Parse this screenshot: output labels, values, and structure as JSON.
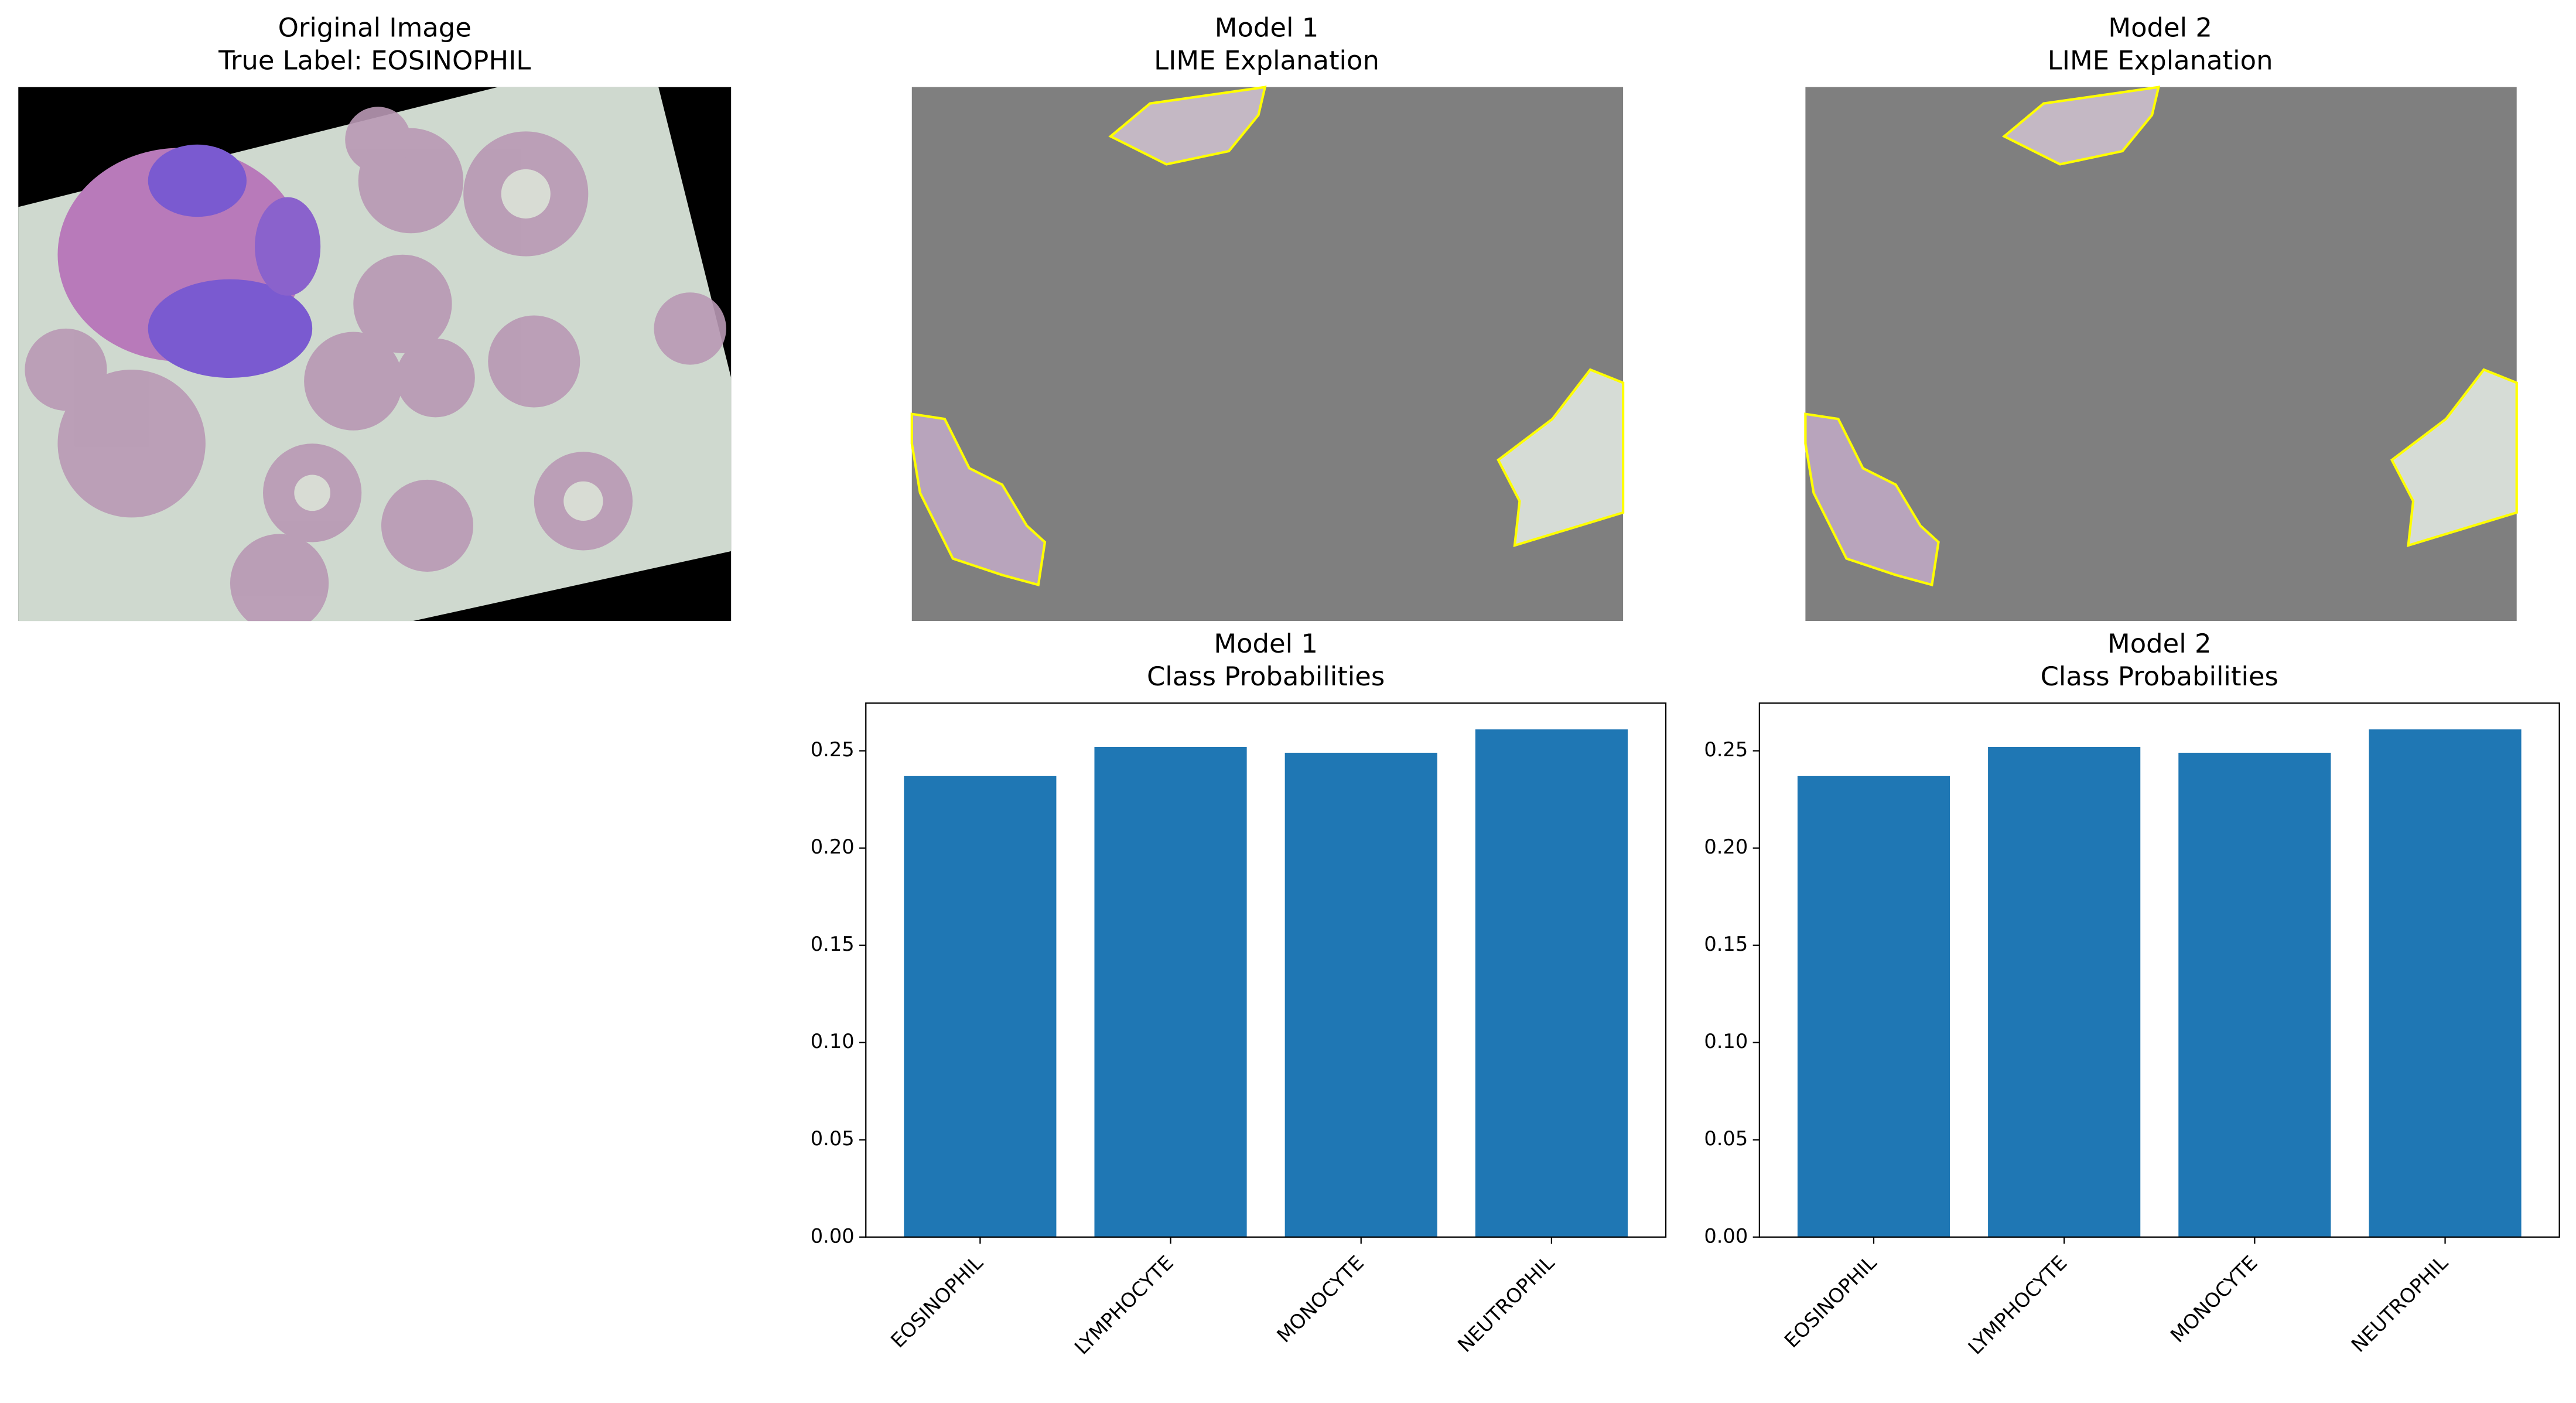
{
  "images": [
    {
      "title": [
        "Original Image",
        "True Label: EOSINOPHIL"
      ]
    },
    {
      "title": [
        "Model 1",
        "LIME Explanation"
      ]
    },
    {
      "title": [
        "Model 2",
        "LIME Explanation"
      ]
    }
  ],
  "chart_data": [
    {
      "type": "bar",
      "title": [
        "Model 1",
        "Class Probabilities"
      ],
      "categories": [
        "EOSINOPHIL",
        "LYMPHOCYTE",
        "MONOCYTE",
        "NEUTROPHIL"
      ],
      "values": [
        0.237,
        0.252,
        0.249,
        0.261
      ],
      "color": "#1f77b4",
      "ylim": [
        0,
        0.2745
      ],
      "yticks": [
        {
          "value": 0,
          "label": "0.00"
        },
        {
          "value": 0.05,
          "label": "0.05"
        },
        {
          "value": 0.1,
          "label": "0.10"
        },
        {
          "value": 0.15,
          "label": "0.15"
        },
        {
          "value": 0.2,
          "label": "0.20"
        },
        {
          "value": 0.25,
          "label": "0.25"
        }
      ]
    },
    {
      "type": "bar",
      "title": [
        "Model 2",
        "Class Probabilities"
      ],
      "categories": [
        "EOSINOPHIL",
        "LYMPHOCYTE",
        "MONOCYTE",
        "NEUTROPHIL"
      ],
      "values": [
        0.237,
        0.252,
        0.249,
        0.261
      ],
      "color": "#1f77b4",
      "ylim": [
        0,
        0.2745
      ],
      "yticks": [
        {
          "value": 0,
          "label": "0.00"
        },
        {
          "value": 0.05,
          "label": "0.05"
        },
        {
          "value": 0.1,
          "label": "0.10"
        },
        {
          "value": 0.15,
          "label": "0.15"
        },
        {
          "value": 0.2,
          "label": "0.20"
        },
        {
          "value": 0.25,
          "label": "0.25"
        }
      ]
    }
  ]
}
